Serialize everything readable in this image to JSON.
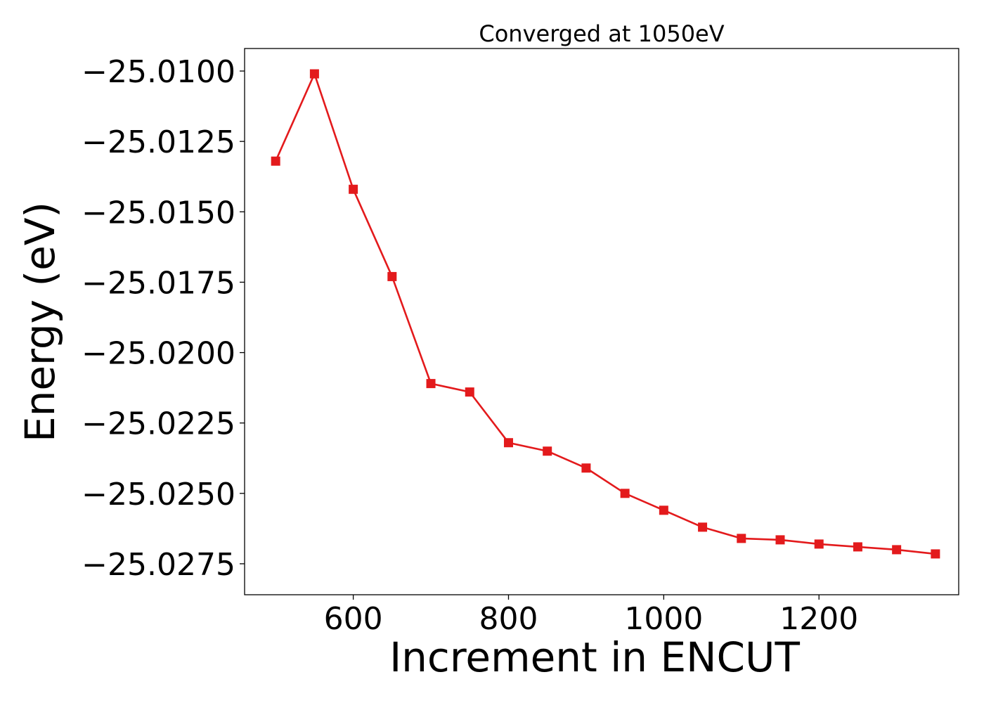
{
  "chart_data": {
    "type": "line",
    "title": "Converged at 1050eV",
    "xlabel": "Increment in ENCUT",
    "ylabel": "Energy (eV)",
    "xlim": [
      460,
      1380
    ],
    "ylim": [
      -25.0286,
      -25.0092
    ],
    "x_ticks": [
      600,
      800,
      1000,
      1200
    ],
    "y_ticks": [
      -25.01,
      -25.0125,
      -25.015,
      -25.0175,
      -25.02,
      -25.0225,
      -25.025,
      -25.0275
    ],
    "x_tick_labels": [
      "600",
      "800",
      "1000",
      "1200"
    ],
    "y_tick_labels": [
      "−25.0100",
      "−25.0125",
      "−25.0150",
      "−25.0175",
      "−25.0200",
      "−25.0225",
      "−25.0250",
      "−25.0275"
    ],
    "grid": false,
    "legend": false,
    "marker": "square",
    "series": [
      {
        "color": "#e31a1c",
        "x": [
          500,
          550,
          600,
          650,
          700,
          750,
          800,
          850,
          900,
          950,
          1000,
          1050,
          1100,
          1150,
          1200,
          1250,
          1300,
          1350
        ],
        "y": [
          -25.0132,
          -25.0101,
          -25.0142,
          -25.0173,
          -25.0211,
          -25.0214,
          -25.0232,
          -25.0235,
          -25.0241,
          -25.025,
          -25.0256,
          -25.0262,
          -25.0266,
          -25.02665,
          -25.0268,
          -25.0269,
          -25.027,
          -25.02715
        ]
      }
    ]
  }
}
